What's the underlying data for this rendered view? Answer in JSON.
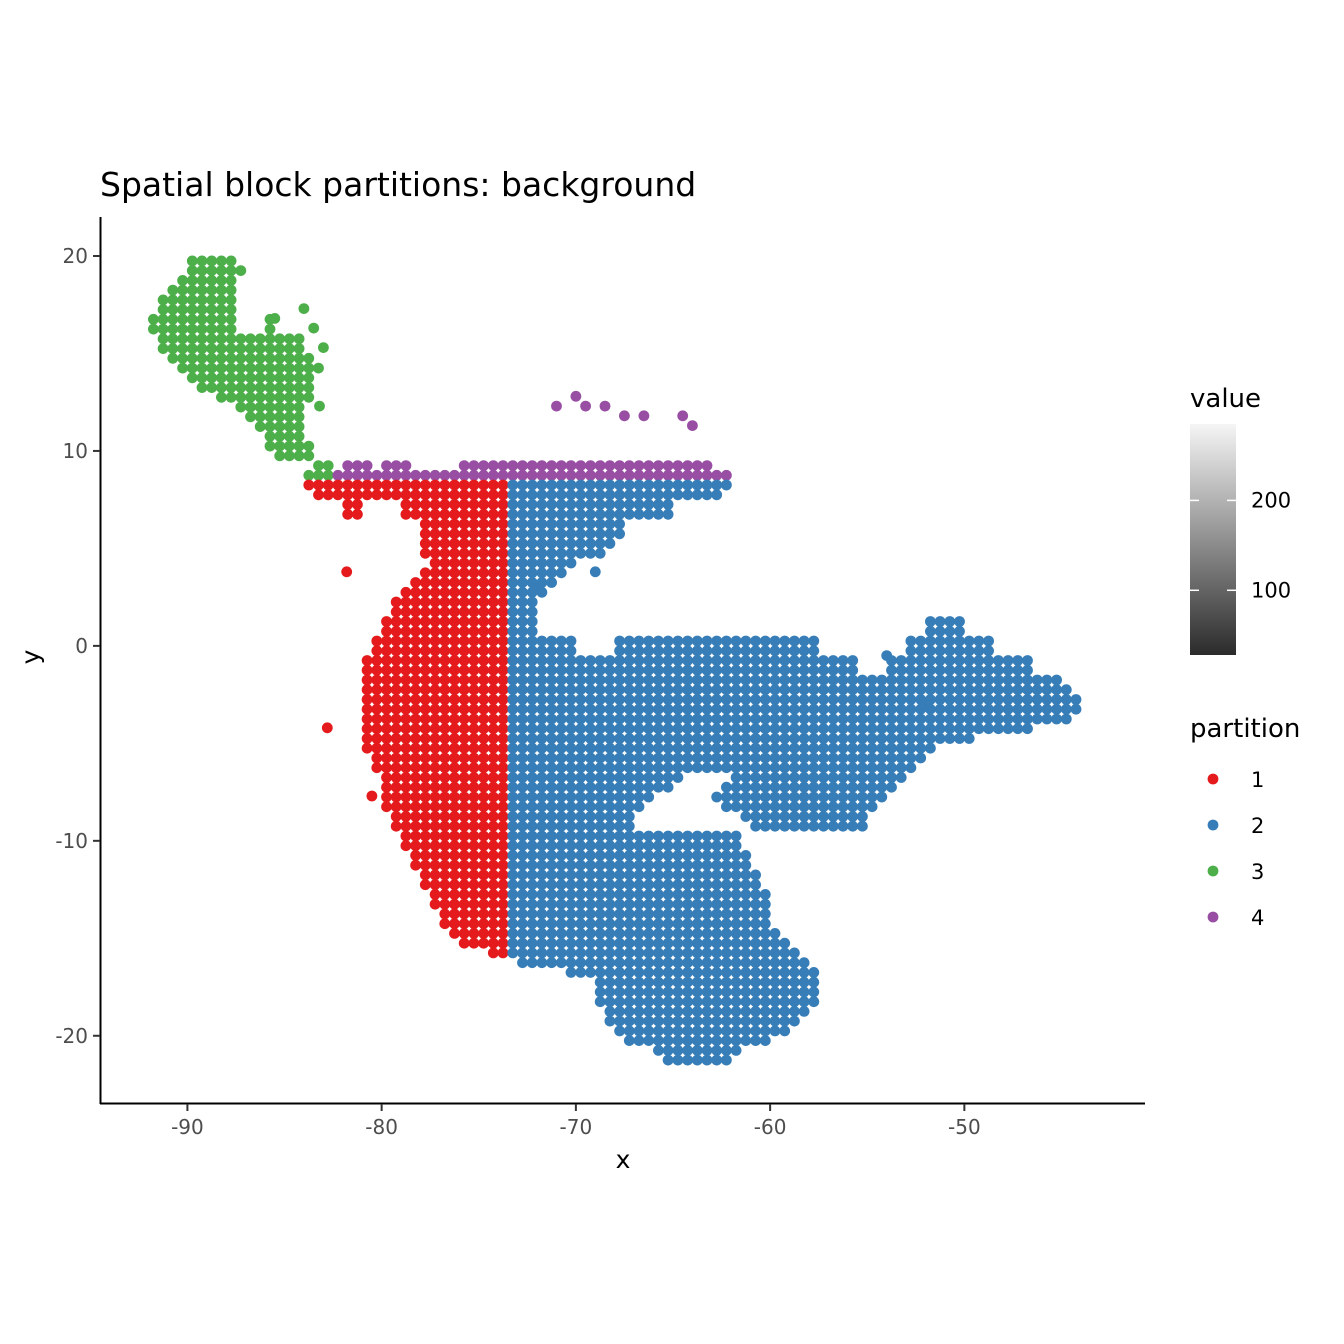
{
  "chart_data": {
    "type": "scatter",
    "title": "Spatial block partitions: background",
    "xlabel": "x",
    "ylabel": "y",
    "xlim": [
      -94.5,
      -40.7
    ],
    "ylim": [
      -23.5,
      22.0
    ],
    "x_ticks": [
      -90,
      -80,
      -70,
      -60,
      -50
    ],
    "y_ticks": [
      20,
      10,
      0,
      -10,
      -20
    ],
    "x_tick_labels": [
      "-90",
      "-80",
      "-70",
      "-60",
      "-50"
    ],
    "y_tick_labels": [
      "20",
      "10",
      "0",
      "-10",
      "-20"
    ],
    "grid": false,
    "grid_spacing": 0.5,
    "split_x": -73.5,
    "split_y": 8.5,
    "value_legend": {
      "title": "value",
      "range": [
        28,
        285
      ],
      "ticks": [
        100,
        200
      ],
      "tick_labels": [
        "100",
        "200"
      ],
      "colors": [
        "#2b2b2b",
        "#f5f5f5"
      ]
    },
    "partition_legend": {
      "title": "partition",
      "placement": "right",
      "entries": [
        {
          "label": "1",
          "color": "#e41a1c"
        },
        {
          "label": "2",
          "color": "#377eb8"
        },
        {
          "label": "3",
          "color": "#4daf4a"
        },
        {
          "label": "4",
          "color": "#984ea3"
        }
      ]
    },
    "region": {
      "rows": [
        [
          19.8,
          [
            [
              -89.8,
              -87.3
            ]
          ]
        ],
        [
          19.0,
          [
            [
              -90.2,
              -87.2
            ]
          ]
        ],
        [
          18.0,
          [
            [
              -91.5,
              -87.5
            ]
          ]
        ],
        [
          17.0,
          [
            [
              -91.8,
              -87.8
            ]
          ]
        ],
        [
          16.5,
          [
            [
              -91.9,
              -87.5
            ],
            [
              -86.0,
              -85.5
            ]
          ]
        ],
        [
          15.5,
          [
            [
              -91.5,
              -84.0
            ]
          ]
        ],
        [
          14.5,
          [
            [
              -90.5,
              -83.2
            ]
          ]
        ],
        [
          13.5,
          [
            [
              -90.0,
              -83.3
            ]
          ]
        ],
        [
          12.5,
          [
            [
              -88.0,
              -83.8
            ]
          ]
        ],
        [
          11.5,
          [
            [
              -86.5,
              -84.0
            ]
          ]
        ],
        [
          10.5,
          [
            [
              -86.0,
              -83.8
            ]
          ]
        ],
        [
          9.5,
          [
            [
              -85.5,
              -83.4
            ]
          ]
        ],
        [
          9.0,
          [
            [
              -83.5,
              -82.5
            ],
            [
              -82.2,
              -80.5
            ],
            [
              -80.0,
              -78.5
            ],
            [
              -76.0,
              -63.0
            ]
          ]
        ],
        [
          8.5,
          [
            [
              -84.0,
              -62.0
            ]
          ]
        ],
        [
          8.0,
          [
            [
              -83.5,
              -62.5
            ]
          ]
        ],
        [
          7.0,
          [
            [
              -82.2,
              -80.8
            ],
            [
              -79.0,
              -65.0
            ]
          ]
        ],
        [
          6.0,
          [
            [
              -78.0,
              -67.5
            ]
          ]
        ],
        [
          5.0,
          [
            [
              -78.0,
              -68.0
            ]
          ]
        ],
        [
          4.0,
          [
            [
              -77.5,
              -70.5
            ]
          ]
        ],
        [
          3.0,
          [
            [
              -78.5,
              -71.5
            ]
          ]
        ],
        [
          2.0,
          [
            [
              -79.5,
              -72.0
            ]
          ]
        ],
        [
          1.0,
          [
            [
              -80.0,
              -72.0
            ],
            [
              -52.0,
              -50.0
            ]
          ]
        ],
        [
          0.0,
          [
            [
              -80.5,
              -70.0
            ],
            [
              -68.0,
              -57.5
            ],
            [
              -53.0,
              -48.5
            ]
          ]
        ],
        [
          -1.0,
          [
            [
              -81.0,
              -55.5
            ],
            [
              -54.0,
              -46.5
            ]
          ]
        ],
        [
          -2.0,
          [
            [
              -81.0,
              -45.0
            ]
          ]
        ],
        [
          -3.0,
          [
            [
              -81.0,
              -44.0
            ]
          ]
        ],
        [
          -4.0,
          [
            [
              -81.0,
              -45.0
            ]
          ]
        ],
        [
          -5.0,
          [
            [
              -81.0,
              -51.0
            ]
          ]
        ],
        [
          -6.0,
          [
            [
              -80.5,
              -52.5
            ]
          ]
        ],
        [
          -7.0,
          [
            [
              -80.0,
              -64.5
            ],
            [
              -62.0,
              -53.0
            ]
          ]
        ],
        [
          -8.0,
          [
            [
              -80.0,
              -66.5
            ],
            [
              -63.0,
              -54.5
            ]
          ]
        ],
        [
          -9.0,
          [
            [
              -79.5,
              -67.0
            ],
            [
              -61.0,
              -55.0
            ]
          ]
        ],
        [
          -10.0,
          [
            [
              -79.0,
              -61.5
            ]
          ]
        ],
        [
          -11.0,
          [
            [
              -78.5,
              -61.0
            ]
          ]
        ],
        [
          -12.0,
          [
            [
              -78.0,
              -60.5
            ]
          ]
        ],
        [
          -13.0,
          [
            [
              -77.5,
              -60.0
            ]
          ]
        ],
        [
          -14.0,
          [
            [
              -77.0,
              -60.0
            ]
          ]
        ],
        [
          -15.0,
          [
            [
              -76.5,
              -59.5
            ]
          ]
        ],
        [
          -16.0,
          [
            [
              -74.0,
              -58.0
            ]
          ]
        ],
        [
          -17.0,
          [
            [
              -69.0,
              -57.5
            ]
          ]
        ],
        [
          -18.0,
          [
            [
              -69.0,
              -57.5
            ]
          ]
        ],
        [
          -19.0,
          [
            [
              -68.5,
              -58.0
            ]
          ]
        ],
        [
          -20.0,
          [
            [
              -68.0,
              -59.5
            ]
          ]
        ],
        [
          -21.0,
          [
            [
              -65.5,
              -62.0
            ]
          ]
        ]
      ],
      "extra_points": [
        [
          -81.8,
          3.8
        ],
        [
          -82.8,
          -4.2
        ],
        [
          -80.5,
          -7.7
        ],
        [
          -84.0,
          17.3
        ],
        [
          -83.5,
          16.3
        ],
        [
          -83.0,
          15.3
        ],
        [
          -83.2,
          12.3
        ],
        [
          -85.5,
          16.8
        ],
        [
          -71.0,
          12.3
        ],
        [
          -70.0,
          12.8
        ],
        [
          -69.5,
          12.3
        ],
        [
          -68.5,
          12.3
        ],
        [
          -67.5,
          11.8
        ],
        [
          -66.5,
          11.8
        ],
        [
          -64.5,
          11.8
        ],
        [
          -64.0,
          11.3
        ],
        [
          -69.0,
          3.8
        ],
        [
          -72.0,
          3.0
        ],
        [
          -54.0,
          -0.5
        ],
        [
          -52.0,
          -3.0
        ]
      ]
    }
  }
}
